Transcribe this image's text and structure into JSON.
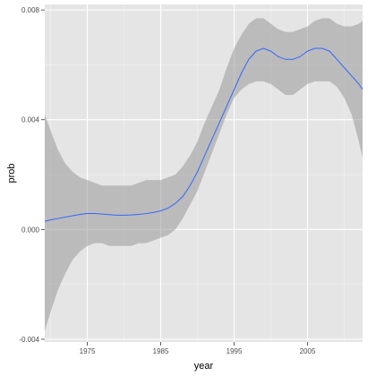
{
  "chart_data": {
    "type": "line",
    "title": "",
    "xlabel": "year",
    "ylabel": "prob",
    "xlim": [
      1969.2,
      2012.5
    ],
    "ylim": [
      -0.0041,
      0.0082
    ],
    "x_ticks": [
      1975,
      1985,
      1995,
      2005
    ],
    "x_tick_labels": [
      "1975",
      "1985",
      "1995",
      "2005"
    ],
    "y_ticks": [
      -0.004,
      0.0,
      0.004,
      0.008
    ],
    "y_tick_labels": [
      "-0.004",
      "0.000",
      "0.004",
      "0.008"
    ],
    "grid": true,
    "colors": {
      "panel": "#e5e5e5",
      "grid_major": "#ffffff",
      "grid_minor": "#f2f2f2",
      "line": "#3366ff",
      "ribbon": "#999999"
    },
    "series": [
      {
        "x": [
          1969.2,
          1970,
          1971,
          1972,
          1973,
          1974,
          1975,
          1976,
          1977,
          1978,
          1979,
          1980,
          1981,
          1982,
          1983,
          1984,
          1985,
          1986,
          1987,
          1988,
          1989,
          1990,
          1991,
          1992,
          1993,
          1994,
          1995,
          1996,
          1997,
          1998,
          1999,
          2000,
          2001,
          2002,
          2003,
          2004,
          2005,
          2006,
          2007,
          2008,
          2009,
          2010,
          2011,
          2012,
          2012.5
        ],
        "y": [
          0.0003,
          0.00035,
          0.0004,
          0.00045,
          0.0005,
          0.00055,
          0.00058,
          0.00058,
          0.00056,
          0.00054,
          0.00052,
          0.00052,
          0.00053,
          0.00055,
          0.00058,
          0.00062,
          0.00068,
          0.00078,
          0.00095,
          0.0012,
          0.0016,
          0.0021,
          0.0027,
          0.0033,
          0.0039,
          0.0045,
          0.0051,
          0.0057,
          0.0062,
          0.0065,
          0.0066,
          0.0065,
          0.0063,
          0.0062,
          0.0062,
          0.0063,
          0.0065,
          0.0066,
          0.0066,
          0.0065,
          0.0062,
          0.0059,
          0.0056,
          0.0053,
          0.0051
        ],
        "lower": [
          -0.0037,
          -0.003,
          -0.0022,
          -0.0016,
          -0.0011,
          -0.0008,
          -0.0006,
          -0.0005,
          -0.0005,
          -0.0006,
          -0.0006,
          -0.0006,
          -0.0006,
          -0.0005,
          -0.0005,
          -0.0004,
          -0.0003,
          -0.0002,
          0.0,
          0.0004,
          0.0009,
          0.0014,
          0.0021,
          0.0028,
          0.0035,
          0.0042,
          0.0048,
          0.0051,
          0.0053,
          0.0054,
          0.0054,
          0.0053,
          0.0051,
          0.0049,
          0.0049,
          0.0051,
          0.0053,
          0.0054,
          0.0054,
          0.0054,
          0.0052,
          0.0048,
          0.0042,
          0.0032,
          0.0026
        ],
        "upper": [
          0.0042,
          0.0036,
          0.0029,
          0.0024,
          0.0021,
          0.0019,
          0.0018,
          0.0017,
          0.0016,
          0.0016,
          0.0016,
          0.0016,
          0.0016,
          0.0017,
          0.0018,
          0.0018,
          0.0018,
          0.0019,
          0.002,
          0.0023,
          0.0027,
          0.0032,
          0.0039,
          0.0045,
          0.0051,
          0.0059,
          0.0066,
          0.0071,
          0.0075,
          0.0077,
          0.0077,
          0.0075,
          0.0073,
          0.0072,
          0.0072,
          0.0073,
          0.0074,
          0.0076,
          0.0077,
          0.0077,
          0.0075,
          0.0074,
          0.0074,
          0.0075,
          0.0076
        ]
      }
    ]
  }
}
